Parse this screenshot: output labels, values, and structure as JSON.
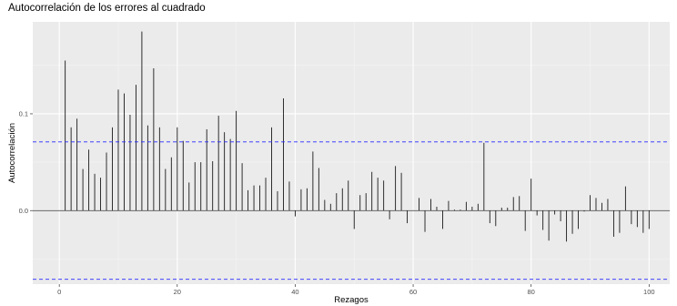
{
  "chart_data": {
    "type": "bar",
    "title": "Autocorrelación de los errores al cuadrado",
    "xlabel": "Rezagos",
    "ylabel": "Autocorrelación",
    "xlim": [
      -4.5,
      103.5
    ],
    "ylim": [
      -0.076,
      0.195
    ],
    "x_ticks": [
      0,
      20,
      40,
      60,
      80,
      100
    ],
    "x_tick_labels": [
      "0",
      "20",
      "40",
      "60",
      "80",
      "100"
    ],
    "y_ticks": [
      0.0,
      0.1
    ],
    "y_tick_labels": [
      "0.0",
      "0.1"
    ],
    "confidence_bounds": [
      0.071,
      -0.071
    ],
    "grid": true,
    "lags": [
      1,
      2,
      3,
      4,
      5,
      6,
      7,
      8,
      9,
      10,
      11,
      12,
      13,
      14,
      15,
      16,
      17,
      18,
      19,
      20,
      21,
      22,
      23,
      24,
      25,
      26,
      27,
      28,
      29,
      30,
      31,
      32,
      33,
      34,
      35,
      36,
      37,
      38,
      39,
      40,
      41,
      42,
      43,
      44,
      45,
      46,
      47,
      48,
      49,
      50,
      51,
      52,
      53,
      54,
      55,
      56,
      57,
      58,
      59,
      60,
      61,
      62,
      63,
      64,
      65,
      66,
      67,
      68,
      69,
      70,
      71,
      72,
      73,
      74,
      75,
      76,
      77,
      78,
      79,
      80,
      81,
      82,
      83,
      84,
      85,
      86,
      87,
      88,
      89,
      90,
      91,
      92,
      93,
      94,
      95,
      96,
      97,
      98,
      99,
      100
    ],
    "values": [
      0.155,
      0.086,
      0.095,
      0.043,
      0.063,
      0.038,
      0.034,
      0.06,
      0.086,
      0.125,
      0.121,
      0.099,
      0.13,
      0.185,
      0.088,
      0.147,
      0.086,
      0.043,
      0.055,
      0.086,
      0.072,
      0.029,
      0.05,
      0.05,
      0.084,
      0.051,
      0.098,
      0.081,
      0.074,
      0.103,
      0.049,
      0.021,
      0.026,
      0.026,
      0.034,
      0.086,
      0.02,
      0.116,
      0.03,
      -0.006,
      0.022,
      0.023,
      0.061,
      0.044,
      0.011,
      0.007,
      0.018,
      0.023,
      0.031,
      -0.019,
      0.016,
      0.018,
      0.04,
      0.034,
      0.031,
      -0.009,
      0.046,
      0.039,
      -0.013,
      0.0,
      0.013,
      -0.022,
      0.012,
      0.004,
      -0.019,
      0.01,
      0.001,
      0.001,
      0.009,
      0.004,
      0.007,
      0.07,
      -0.013,
      -0.016,
      0.003,
      0.003,
      0.014,
      0.015,
      -0.021,
      0.033,
      -0.005,
      -0.02,
      -0.031,
      -0.004,
      -0.011,
      -0.032,
      -0.024,
      -0.019,
      -0.001,
      0.016,
      0.013,
      0.008,
      0.012,
      -0.027,
      -0.023,
      0.025,
      -0.014,
      -0.017,
      -0.023,
      -0.019
    ]
  }
}
